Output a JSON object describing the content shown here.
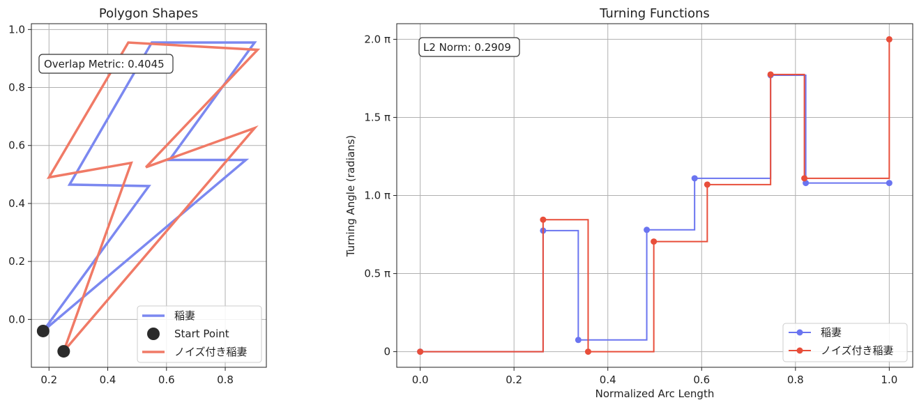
{
  "chart_data": [
    {
      "type": "line",
      "title": "Polygon Shapes",
      "xlabel": "",
      "ylabel": "",
      "xlim": [
        0.14,
        0.94
      ],
      "ylim": [
        -0.165,
        1.02
      ],
      "xticks": [
        0.2,
        0.4,
        0.6,
        0.8
      ],
      "xtick_labels": [
        "0.2",
        "0.4",
        "0.6",
        "0.8"
      ],
      "yticks": [
        0.0,
        0.2,
        0.4,
        0.6,
        0.8,
        1.0
      ],
      "ytick_labels": [
        "0.0",
        "0.2",
        "0.4",
        "0.6",
        "0.8",
        "1.0"
      ],
      "grid": true,
      "legend_position": "lower-right",
      "legend_entries": [
        "稲妻",
        "Start Point",
        "ノイズ付き稲妻"
      ],
      "annotation": "Overlap Metric: 0.4045",
      "series": [
        {
          "name": "稲妻",
          "color": "#7b88f0",
          "points": [
            [
              0.18,
              -0.04
            ],
            [
              0.87,
              0.55
            ],
            [
              0.61,
              0.55
            ],
            [
              0.9,
              0.955
            ],
            [
              0.55,
              0.955
            ],
            [
              0.27,
              0.465
            ],
            [
              0.54,
              0.46
            ],
            [
              0.18,
              -0.04
            ]
          ]
        },
        {
          "name": "ノイズ付き稲妻",
          "color": "#f07a66",
          "points": [
            [
              0.25,
              -0.11
            ],
            [
              0.9,
              0.66
            ],
            [
              0.53,
              0.525
            ],
            [
              0.91,
              0.93
            ],
            [
              0.47,
              0.955
            ],
            [
              0.2,
              0.49
            ],
            [
              0.48,
              0.54
            ],
            [
              0.25,
              -0.11
            ]
          ]
        }
      ],
      "start_points": {
        "name": "Start Point",
        "color": "#2b2b2b",
        "points": [
          [
            0.18,
            -0.04
          ],
          [
            0.25,
            -0.11
          ]
        ]
      }
    },
    {
      "type": "line",
      "title": "Turning Functions",
      "xlabel": "Normalized Arc Length",
      "ylabel": "Turning Angle (radians)",
      "xlim": [
        -0.05,
        1.05
      ],
      "ylim": [
        -0.1,
        2.1
      ],
      "xticks": [
        0.0,
        0.2,
        0.4,
        0.6,
        0.8,
        1.0
      ],
      "xtick_labels": [
        "0.0",
        "0.2",
        "0.4",
        "0.6",
        "0.8",
        "1.0"
      ],
      "yticks": [
        0,
        0.5,
        1.0,
        1.5,
        2.0
      ],
      "ytick_labels": [
        "0",
        "0.5 π",
        "1.0 π",
        "1.5 π",
        "2.0 π"
      ],
      "y_unit": "π",
      "grid": true,
      "legend_position": "lower-right",
      "legend_entries": [
        "稲妻",
        "ノイズ付き稲妻"
      ],
      "annotation": "L2 Norm: 0.2909",
      "series": [
        {
          "name": "稲妻",
          "color": "#6a74f0",
          "x": [
            0.0,
            0.262,
            0.337,
            0.483,
            0.585,
            0.747,
            0.822,
            1.0
          ],
          "y": [
            0.0,
            0.775,
            0.075,
            0.78,
            1.11,
            1.77,
            1.08,
            1.08
          ]
        },
        {
          "name": "ノイズ付き稲妻",
          "color": "#e84e3a",
          "x": [
            0.0,
            0.262,
            0.358,
            0.498,
            0.612,
            0.747,
            0.819,
            1.0
          ],
          "y": [
            0.0,
            0.845,
            0.0,
            0.705,
            1.07,
            1.775,
            1.11,
            2.0
          ]
        }
      ]
    }
  ]
}
